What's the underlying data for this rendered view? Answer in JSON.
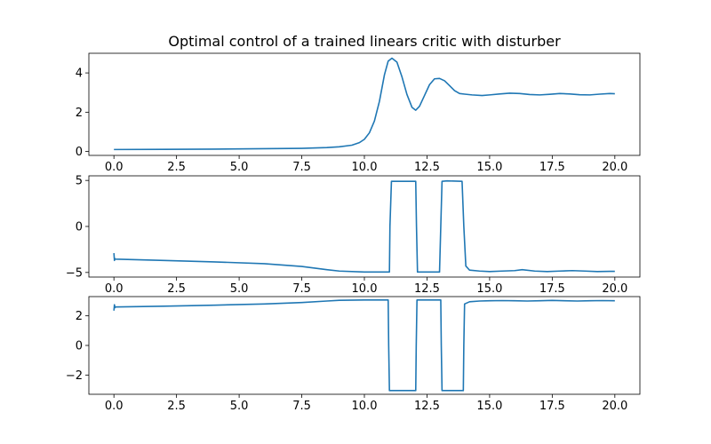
{
  "chart_data": {
    "title": "Optimal control of a trained linears critic with disturber",
    "color": "#1f77b4",
    "subplots": [
      {
        "type": "line",
        "xlim": [
          -1.0,
          21.0
        ],
        "ylim": [
          -0.2,
          5.0
        ],
        "xticks": [
          0.0,
          2.5,
          5.0,
          7.5,
          10.0,
          12.5,
          15.0,
          17.5,
          20.0
        ],
        "xtick_labels": [
          "0.0",
          "2.5",
          "5.0",
          "7.5",
          "10.0",
          "12.5",
          "15.0",
          "17.5",
          "20.0"
        ],
        "yticks": [
          0,
          2,
          4
        ],
        "ytick_labels": [
          "0",
          "2",
          "4"
        ],
        "series": [
          {
            "x": [
              0,
              2,
              4,
              6,
              7.5,
              8.5,
              9.0,
              9.5,
              9.8,
              10.0,
              10.2,
              10.4,
              10.6,
              10.8,
              10.95,
              11.1,
              11.3,
              11.5,
              11.7,
              11.9,
              12.05,
              12.2,
              12.4,
              12.6,
              12.8,
              13.0,
              13.2,
              13.4,
              13.6,
              13.8,
              14.0,
              14.3,
              14.7,
              15.0,
              15.4,
              15.8,
              16.2,
              16.6,
              17.0,
              17.4,
              17.8,
              18.2,
              18.6,
              19.0,
              19.4,
              19.8,
              20.0
            ],
            "y": [
              0.1,
              0.11,
              0.12,
              0.14,
              0.16,
              0.2,
              0.24,
              0.32,
              0.45,
              0.62,
              0.95,
              1.55,
              2.55,
              3.9,
              4.6,
              4.75,
              4.55,
              3.8,
              2.9,
              2.25,
              2.1,
              2.3,
              2.85,
              3.4,
              3.7,
              3.72,
              3.6,
              3.35,
              3.1,
              2.95,
              2.92,
              2.88,
              2.85,
              2.88,
              2.93,
              2.97,
              2.95,
              2.9,
              2.88,
              2.91,
              2.95,
              2.93,
              2.89,
              2.88,
              2.92,
              2.95,
              2.94
            ]
          }
        ]
      },
      {
        "type": "line",
        "xlim": [
          -1.0,
          21.0
        ],
        "ylim": [
          -5.5,
          5.5
        ],
        "xticks": [
          0.0,
          2.5,
          5.0,
          7.5,
          10.0,
          12.5,
          15.0,
          17.5,
          20.0
        ],
        "xtick_labels": [
          "0.0",
          "2.5",
          "5.0",
          "7.5",
          "10.0",
          "12.5",
          "15.0",
          "17.5",
          "20.0"
        ],
        "yticks": [
          -5,
          0,
          5
        ],
        "ytick_labels": [
          "−5",
          "0",
          "5"
        ],
        "series": [
          {
            "x": [
              0.0,
              0.02,
              0.04,
              0.06,
              2,
              4,
              6,
              7.5,
              8.5,
              9.0,
              10.0,
              11.0,
              11.02,
              11.08,
              12.05,
              12.08,
              12.12,
              12.3,
              12.6,
              13.0,
              13.05,
              13.1,
              13.3,
              13.9,
              13.97,
              14.05,
              14.2,
              14.6,
              15.0,
              15.5,
              16.0,
              16.3,
              16.8,
              17.3,
              17.8,
              18.3,
              18.8,
              19.3,
              19.8,
              20.0
            ],
            "y": [
              -2.9,
              -3.7,
              -3.5,
              -3.55,
              -3.7,
              -3.85,
              -4.05,
              -4.35,
              -4.7,
              -4.85,
              -4.95,
              -4.95,
              0,
              4.9,
              4.9,
              0,
              -4.95,
              -4.95,
              -4.95,
              -4.95,
              0,
              4.9,
              4.95,
              4.9,
              0,
              -4.3,
              -4.75,
              -4.85,
              -4.9,
              -4.85,
              -4.8,
              -4.7,
              -4.85,
              -4.9,
              -4.85,
              -4.8,
              -4.85,
              -4.9,
              -4.88,
              -4.88
            ]
          }
        ]
      },
      {
        "type": "line",
        "xlim": [
          -1.0,
          21.0
        ],
        "ylim": [
          -3.3,
          3.3
        ],
        "xticks": [
          0.0,
          2.5,
          5.0,
          7.5,
          10.0,
          12.5,
          15.0,
          17.5,
          20.0
        ],
        "xtick_labels": [
          "0.0",
          "2.5",
          "5.0",
          "7.5",
          "10.0",
          "12.5",
          "15.0",
          "17.5",
          "20.0"
        ],
        "yticks": [
          -2,
          0,
          2
        ],
        "ytick_labels": [
          "−2",
          "0",
          "2"
        ],
        "series": [
          {
            "x": [
              0.0,
              0.02,
              0.04,
              0.06,
              2,
              4,
              6,
              7.5,
              8.5,
              9.0,
              10.0,
              10.95,
              10.97,
              11.0,
              12.05,
              12.07,
              12.1,
              12.8,
              13.05,
              13.07,
              13.1,
              13.95,
              13.97,
              14.0,
              14.2,
              14.6,
              15.0,
              15.5,
              16.0,
              16.5,
              17.0,
              17.5,
              18.0,
              18.5,
              19.0,
              19.5,
              20.0
            ],
            "y": [
              2.35,
              2.75,
              2.55,
              2.6,
              2.65,
              2.72,
              2.8,
              2.9,
              3.0,
              3.05,
              3.07,
              3.07,
              0,
              -3.05,
              -3.05,
              0,
              3.07,
              3.07,
              3.07,
              0,
              -3.05,
              -3.05,
              0,
              2.8,
              2.95,
              3.0,
              3.02,
              3.03,
              3.02,
              3.0,
              3.02,
              3.04,
              3.02,
              3.0,
              3.02,
              3.03,
              3.02
            ]
          }
        ]
      }
    ]
  }
}
